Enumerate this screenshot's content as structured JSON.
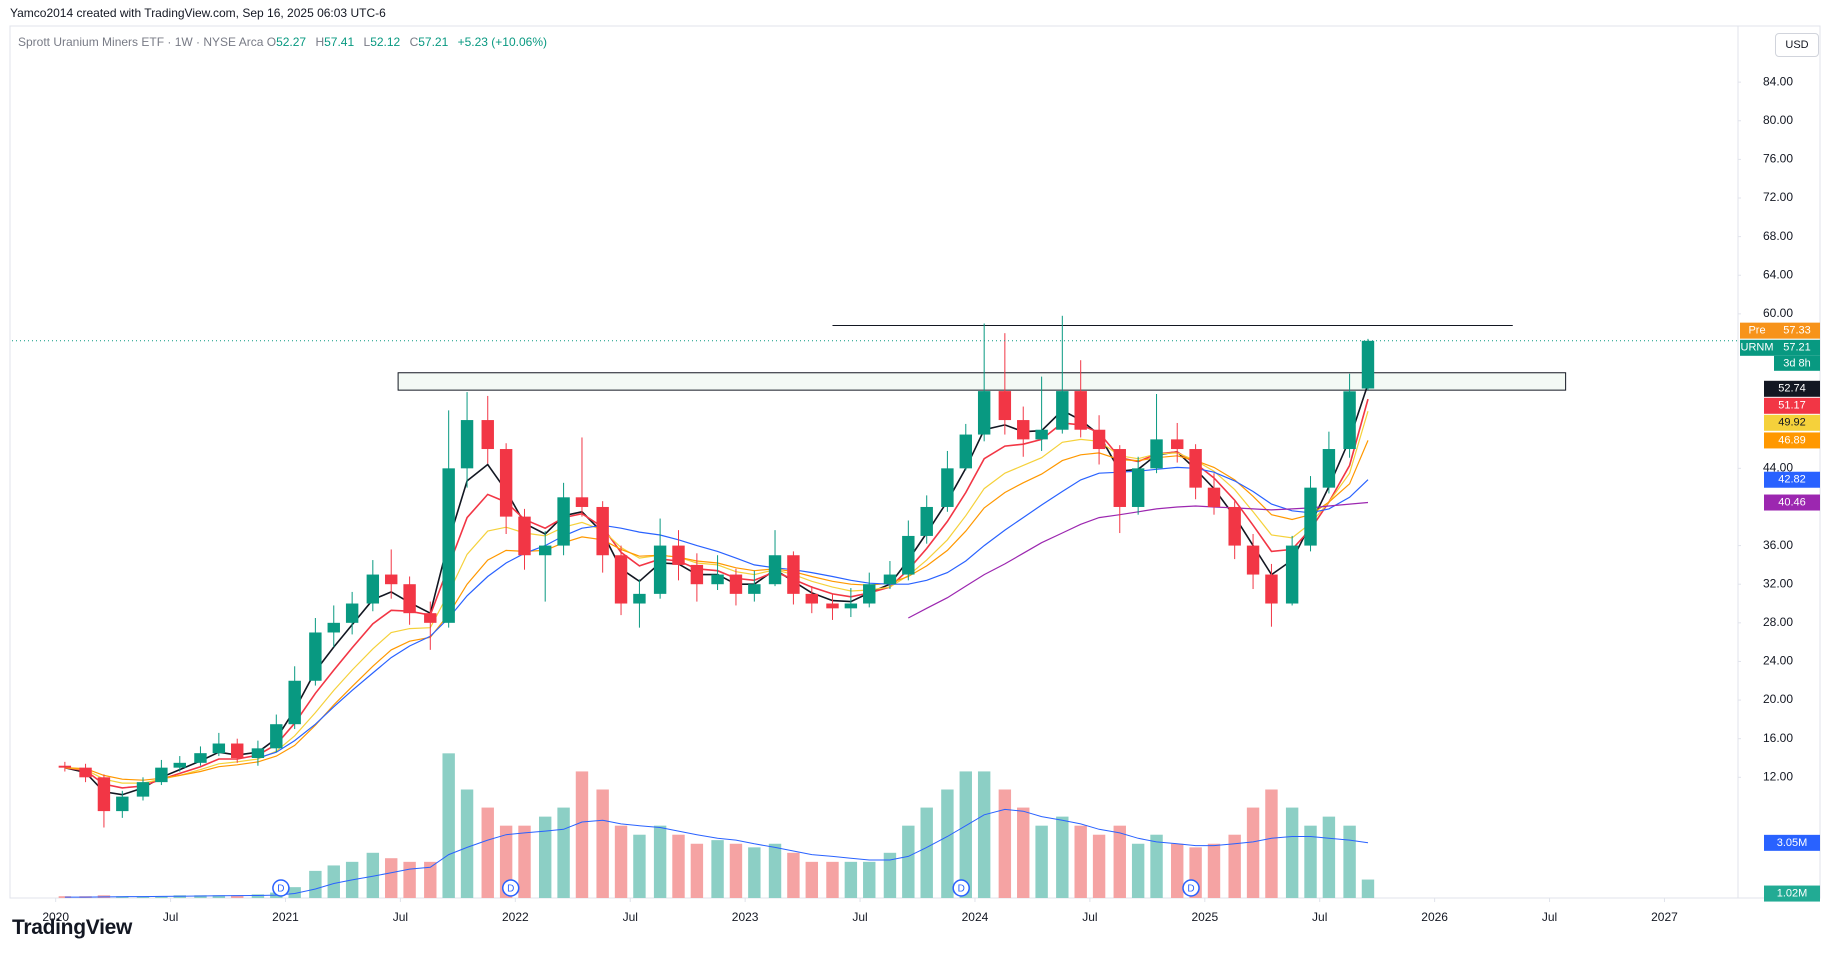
{
  "header": {
    "attribution": "Yamco2014 created with TradingView.com, Sep 16, 2025 06:03 UTC-6",
    "logo": "TradingView"
  },
  "chart_data": {
    "type": "candlestick",
    "title": "Sprott Uranium Miners ETF · 1W · NYSE Arca",
    "ohlc_labels": [
      "O",
      "H",
      "L",
      "C"
    ],
    "change": "+5.23 (+10.06%)",
    "currency": "USD",
    "up_color": "#089981",
    "down_color": "#f23645",
    "x": [
      2020.04,
      2020.13,
      2020.21,
      2020.29,
      2020.38,
      2020.46,
      2020.54,
      2020.63,
      2020.71,
      2020.79,
      2020.88,
      2020.96,
      2021.04,
      2021.13,
      2021.21,
      2021.29,
      2021.38,
      2021.46,
      2021.54,
      2021.63,
      2021.71,
      2021.79,
      2021.88,
      2021.96,
      2022.04,
      2022.13,
      2022.21,
      2022.29,
      2022.38,
      2022.46,
      2022.54,
      2022.63,
      2022.71,
      2022.79,
      2022.88,
      2022.96,
      2023.04,
      2023.13,
      2023.21,
      2023.29,
      2023.38,
      2023.46,
      2023.54,
      2023.63,
      2023.71,
      2023.79,
      2023.88,
      2023.96,
      2024.04,
      2024.13,
      2024.21,
      2024.29,
      2024.38,
      2024.46,
      2024.54,
      2024.63,
      2024.71,
      2024.79,
      2024.88,
      2024.96,
      2025.04,
      2025.13,
      2025.21,
      2025.29,
      2025.38,
      2025.46,
      2025.54,
      2025.63,
      2025.71
    ],
    "open": [
      13.2,
      13,
      12,
      8.5,
      10,
      11.5,
      13,
      13.5,
      14.5,
      15.5,
      14,
      15,
      17.5,
      22,
      27,
      28,
      30,
      33,
      32,
      29,
      28,
      44,
      49,
      46,
      39,
      35,
      36,
      41,
      40,
      35,
      30,
      31,
      36,
      34,
      32,
      33,
      31,
      32,
      35,
      31,
      30,
      29.5,
      30,
      32,
      33,
      37,
      40,
      44,
      47.5,
      52,
      49,
      47,
      48,
      52,
      48,
      46,
      40,
      44,
      47,
      46,
      42,
      40,
      36,
      33,
      30,
      36,
      42,
      46,
      52.27
    ],
    "high": [
      13.6,
      13.4,
      12.3,
      10.6,
      12,
      13.8,
      14.2,
      15.2,
      16.6,
      16,
      15.8,
      18.5,
      23.5,
      28.5,
      29.8,
      31.2,
      34.5,
      35.6,
      32.8,
      30.2,
      50,
      51.9,
      51.5,
      46.6,
      39.8,
      37.5,
      42.5,
      47.2,
      40.6,
      36,
      32.5,
      38.8,
      37.6,
      35.2,
      35,
      33.6,
      33.4,
      37.6,
      35.4,
      31.8,
      31,
      31.6,
      33.2,
      34.4,
      38.6,
      41.2,
      45.8,
      48.6,
      59,
      58,
      50.4,
      53.5,
      59.8,
      55.2,
      49.5,
      46.4,
      45.2,
      51.7,
      48.7,
      46.5,
      43.5,
      40.6,
      37.2,
      34.1,
      37,
      43.2,
      47.8,
      53.8,
      57.41
    ],
    "low": [
      12.6,
      11.5,
      6.8,
      7.8,
      9.6,
      11.2,
      12.6,
      13.2,
      14.2,
      13.5,
      13.2,
      14.6,
      17,
      21.5,
      25.5,
      26.8,
      29.2,
      30.5,
      27.8,
      25.2,
      27.5,
      42,
      44.5,
      37.2,
      33.5,
      30.2,
      35,
      39,
      33.2,
      28.8,
      27.5,
      30.5,
      32.4,
      30.2,
      31.4,
      29.8,
      30.2,
      31.8,
      29.9,
      29,
      28.3,
      28.6,
      29.6,
      31.5,
      32.4,
      36.2,
      39.5,
      43.8,
      46.8,
      47.5,
      45.2,
      45.8,
      47.6,
      47.2,
      44.4,
      37.3,
      39.2,
      43.5,
      44.6,
      40.8,
      39.2,
      34.6,
      31.5,
      27.6,
      29.8,
      35.4,
      41.4,
      45.1,
      52.12
    ],
    "close": [
      13,
      12,
      8.5,
      10,
      11.5,
      13,
      13.5,
      14.5,
      15.5,
      14,
      15,
      17.5,
      22,
      27,
      28,
      30,
      33,
      32,
      29,
      28,
      44,
      49,
      46,
      39,
      35,
      36,
      41,
      40,
      35,
      30,
      31,
      36,
      34,
      32,
      33,
      31,
      32,
      35,
      31,
      30,
      29.5,
      30,
      32,
      33,
      37,
      40,
      44,
      47.5,
      52,
      49,
      47,
      48,
      52,
      48,
      46,
      40,
      44,
      47,
      46,
      42,
      40,
      36,
      33,
      30,
      36,
      42,
      46,
      51.98,
      57.21
    ],
    "series": [
      {
        "color": "#131722",
        "values": [
          13,
          12.5,
          10.5,
          10.2,
          10.9,
          12,
          12.8,
          13.7,
          14.6,
          14.3,
          14.6,
          16,
          19,
          23,
          25.5,
          27.8,
          30.4,
          31.2,
          30.1,
          29,
          36.5,
          42.7,
          44.4,
          41.7,
          38.3,
          37.2,
          39.1,
          39.5,
          37.3,
          33.6,
          32.3,
          34.2,
          34.1,
          33,
          33,
          32,
          32,
          33.5,
          32.3,
          31.1,
          30.3,
          30.2,
          31.1,
          32,
          34.5,
          37.3,
          40.6,
          44,
          48,
          48.5,
          47.8,
          47.9,
          50,
          49,
          47.5,
          43.7,
          43.9,
          45.4,
          45.7,
          43.9,
          41.9,
          39,
          36,
          33,
          34.5,
          38.2,
          42.1,
          47,
          52.74
        ]
      },
      {
        "color": "#f23645",
        "values": [
          13,
          12.7,
          11.3,
          10.9,
          11.1,
          11.8,
          12.4,
          13.1,
          13.9,
          13.9,
          14.3,
          15.4,
          17.6,
          20.7,
          23.1,
          25.4,
          27.9,
          29.3,
          29.2,
          28.8,
          33.9,
          38.9,
          41.3,
          40.5,
          38.7,
          37.8,
          38.9,
          39.3,
          37.9,
          35.3,
          33.9,
          34.6,
          34.4,
          33.6,
          33.4,
          32.6,
          32.4,
          33.3,
          32.5,
          31.7,
          31,
          30.7,
          31.1,
          31.7,
          33.5,
          35.7,
          38.5,
          41.5,
          45,
          46.3,
          46.5,
          47,
          48.7,
          48.5,
          47.7,
          45.1,
          44.7,
          45.5,
          45.7,
          44.5,
          43,
          40.7,
          38.1,
          35.4,
          35.6,
          37.7,
          40.5,
          44.3,
          51.17
        ]
      },
      {
        "color": "#f5d13b",
        "values": [
          13,
          12.8,
          11.8,
          11.4,
          11.4,
          11.8,
          12.2,
          12.8,
          13.4,
          13.6,
          13.9,
          14.7,
          16.3,
          18.7,
          21,
          23.1,
          25.3,
          27,
          27.4,
          27.5,
          31.1,
          35.1,
          37.5,
          37.9,
          37.3,
          37,
          37.9,
          38.4,
          37.6,
          35.8,
          34.7,
          35,
          34.8,
          34.2,
          34,
          33.3,
          33,
          33.5,
          33,
          32.3,
          31.7,
          31.3,
          31.4,
          31.7,
          32.9,
          34.5,
          36.6,
          39.1,
          41.9,
          43.5,
          44.3,
          45.1,
          46.7,
          47,
          46.8,
          45.3,
          45,
          45.5,
          45.6,
          44.8,
          43.7,
          41.8,
          39.5,
          37.1,
          36.8,
          38.3,
          40.5,
          43.5,
          49.92
        ]
      },
      {
        "color": "#ff9800",
        "values": [
          13,
          12.9,
          12.2,
          11.8,
          11.7,
          11.9,
          12.2,
          12.6,
          13.1,
          13.3,
          13.6,
          14.2,
          15.3,
          17.4,
          19.5,
          21.4,
          23.5,
          25.2,
          26.1,
          26.5,
          28.9,
          32,
          34.5,
          35.5,
          35.4,
          35.5,
          36.3,
          36.9,
          36.6,
          35.6,
          34.9,
          35,
          34.8,
          34.4,
          34.2,
          33.7,
          33.4,
          33.6,
          33.3,
          32.8,
          32.3,
          32,
          31.9,
          32.1,
          32.8,
          33.9,
          35.5,
          37.5,
          39.9,
          41.5,
          42.5,
          43.4,
          44.8,
          45.4,
          45.6,
          44.9,
          44.8,
          45.1,
          45.3,
          44.8,
          44.1,
          42.8,
          41.1,
          39.2,
          38.7,
          39.2,
          40.5,
          42.4,
          46.89
        ]
      },
      {
        "color": "#2962ff",
        "values": [
          null,
          null,
          null,
          null,
          null,
          null,
          null,
          null,
          null,
          null,
          14,
          14.6,
          15.8,
          17.5,
          19.3,
          21,
          22.8,
          24.4,
          25.6,
          26.6,
          28.5,
          30.8,
          32.8,
          34.2,
          35.2,
          36,
          37,
          37.8,
          38.1,
          37.8,
          37.4,
          37.1,
          36.6,
          36,
          35.4,
          34.7,
          34,
          33.7,
          33.5,
          33.2,
          32.8,
          32.4,
          32.1,
          32,
          32,
          32.4,
          33.2,
          34.4,
          36,
          37.6,
          38.9,
          40.2,
          41.6,
          42.8,
          43.5,
          43.6,
          43.7,
          43.9,
          44.1,
          44,
          43.6,
          42.7,
          41.6,
          40.3,
          39.6,
          39.4,
          39.8,
          41,
          42.82
        ]
      },
      {
        "color": "#9c27b0",
        "values": [
          null,
          null,
          null,
          null,
          null,
          null,
          null,
          null,
          null,
          null,
          null,
          null,
          null,
          null,
          null,
          null,
          null,
          null,
          null,
          null,
          null,
          null,
          null,
          null,
          null,
          null,
          null,
          null,
          null,
          null,
          null,
          null,
          null,
          null,
          null,
          null,
          null,
          null,
          null,
          null,
          null,
          null,
          null,
          null,
          28.5,
          29.5,
          30.6,
          31.8,
          33,
          34.1,
          35.2,
          36.3,
          37.3,
          38.2,
          38.9,
          39.2,
          39.5,
          39.8,
          40,
          40.1,
          40,
          39.9,
          39.8,
          39.7,
          39.8,
          39.9,
          40.1,
          40.3,
          40.46
        ]
      }
    ],
    "volume": {
      "color_up": "#8ccfc5",
      "color_down": "#f5a3a3",
      "badge_color": "#22ab94",
      "ylim": [
        0,
        48
      ],
      "values": [
        0.1,
        0.1,
        0.15,
        0.1,
        0.1,
        0.1,
        0.15,
        0.15,
        0.15,
        0.15,
        0.2,
        0.3,
        0.6,
        1.5,
        1.8,
        2,
        2.5,
        2.2,
        2,
        2,
        8,
        6,
        5,
        4,
        4,
        4.5,
        5,
        7,
        6,
        4,
        3.5,
        4,
        3.5,
        3,
        3.2,
        3,
        2.8,
        3,
        2.5,
        2,
        2,
        2,
        2,
        2.5,
        4,
        5,
        6,
        7,
        7,
        6,
        5,
        4,
        4.5,
        4,
        3.5,
        4,
        3,
        3.5,
        3,
        2.8,
        3,
        3.5,
        5,
        6,
        5,
        4,
        4.5,
        4,
        1.02
      ],
      "value_labels": [
        null,
        null,
        null,
        null,
        null,
        null,
        null,
        null,
        null,
        null,
        null,
        null,
        null,
        null,
        null,
        null,
        null,
        null,
        null,
        null,
        null,
        null,
        null,
        null,
        null,
        null,
        null,
        null,
        null,
        null,
        null,
        null,
        null,
        null,
        null,
        null,
        null,
        null,
        null,
        null,
        null,
        null,
        null,
        null,
        null,
        null,
        null,
        null,
        null,
        null,
        null,
        null,
        null,
        null,
        null,
        null,
        null,
        null,
        null,
        null,
        null,
        null,
        null,
        null,
        null,
        null,
        null,
        null,
        "1.02M"
      ]
    },
    "volume_ma": {
      "color": "#2962ff",
      "values": [
        0.05,
        0.05,
        0.06,
        0.07,
        0.08,
        0.09,
        0.1,
        0.11,
        0.12,
        0.13,
        0.14,
        0.16,
        0.25,
        0.5,
        0.8,
        1,
        1.2,
        1.4,
        1.6,
        1.7,
        2.4,
        2.8,
        3.2,
        3.5,
        3.6,
        3.7,
        3.8,
        4.2,
        4.3,
        4.1,
        4,
        3.9,
        3.7,
        3.5,
        3.3,
        3.2,
        3,
        2.8,
        2.6,
        2.4,
        2.3,
        2.2,
        2.1,
        2.1,
        2.3,
        2.8,
        3.4,
        4,
        4.6,
        4.9,
        4.8,
        4.5,
        4.3,
        4.1,
        3.8,
        3.6,
        3.3,
        3.1,
        3,
        2.9,
        2.9,
        3,
        3.1,
        3.3,
        3.4,
        3.4,
        3.3,
        3.2,
        3.05
      ],
      "value_labels": [
        null,
        null,
        null,
        null,
        null,
        null,
        null,
        null,
        null,
        null,
        null,
        null,
        null,
        null,
        null,
        null,
        null,
        null,
        null,
        null,
        null,
        null,
        null,
        null,
        null,
        null,
        null,
        null,
        null,
        null,
        null,
        null,
        null,
        null,
        null,
        null,
        null,
        null,
        null,
        null,
        null,
        null,
        null,
        null,
        null,
        null,
        null,
        null,
        null,
        null,
        null,
        null,
        null,
        null,
        null,
        null,
        null,
        null,
        null,
        null,
        null,
        null,
        null,
        null,
        null,
        null,
        null,
        null,
        "3.05M"
      ]
    },
    "price_tags": [
      {
        "label": "Pre",
        "value": 57.33,
        "color": "#f7931a"
      },
      {
        "label": "URNM",
        "value": 57.21,
        "note": "3d 8h",
        "color": "#089981"
      }
    ],
    "level_line": {
      "value": 58.8,
      "x": [
        2023.38,
        2026.34
      ]
    },
    "zone": {
      "y": [
        52.1,
        53.9
      ],
      "x": [
        2021.49,
        2026.57
      ]
    },
    "events": [
      {
        "x": 2020.98,
        "label": "D"
      },
      {
        "x": 2021.98,
        "label": "D"
      },
      {
        "x": 2023.94,
        "label": "D"
      },
      {
        "x": 2024.94,
        "label": "D"
      }
    ],
    "xlim": [
      2019.81,
      2027.32
    ],
    "xticks": [
      {
        "value": 2020,
        "label": "2020"
      },
      {
        "value": 2020.5,
        "label": "Jul"
      },
      {
        "value": 2021,
        "label": "2021"
      },
      {
        "value": 2021.5,
        "label": "Jul"
      },
      {
        "value": 2022,
        "label": "2022"
      },
      {
        "value": 2022.5,
        "label": "Jul"
      },
      {
        "value": 2023,
        "label": "2023"
      },
      {
        "value": 2023.5,
        "label": "Jul"
      },
      {
        "value": 2024,
        "label": "2024"
      },
      {
        "value": 2024.5,
        "label": "Jul"
      },
      {
        "value": 2025,
        "label": "2025"
      },
      {
        "value": 2025.5,
        "label": "Jul"
      },
      {
        "value": 2026,
        "label": "2026"
      },
      {
        "value": 2026.5,
        "label": "Jul"
      },
      {
        "value": 2027,
        "label": "2027"
      }
    ],
    "ylim": [
      -0.5,
      89.4
    ],
    "yticks": [
      {
        "value": 12,
        "label": "12.00"
      },
      {
        "value": 16,
        "label": "16.00"
      },
      {
        "value": 20,
        "label": "20.00"
      },
      {
        "value": 24,
        "label": "24.00"
      },
      {
        "value": 28,
        "label": "28.00"
      },
      {
        "value": 32,
        "label": "32.00"
      },
      {
        "value": 36,
        "label": "36.00"
      },
      {
        "value": 44,
        "label": "44.00"
      },
      {
        "value": 60,
        "label": "60.00"
      },
      {
        "value": 64,
        "label": "64.00"
      },
      {
        "value": 68,
        "label": "68.00"
      },
      {
        "value": 72,
        "label": "72.00"
      },
      {
        "value": 76,
        "label": "76.00"
      },
      {
        "value": 80,
        "label": "80.00"
      },
      {
        "value": 84,
        "label": "84.00"
      }
    ],
    "grid": false
  }
}
